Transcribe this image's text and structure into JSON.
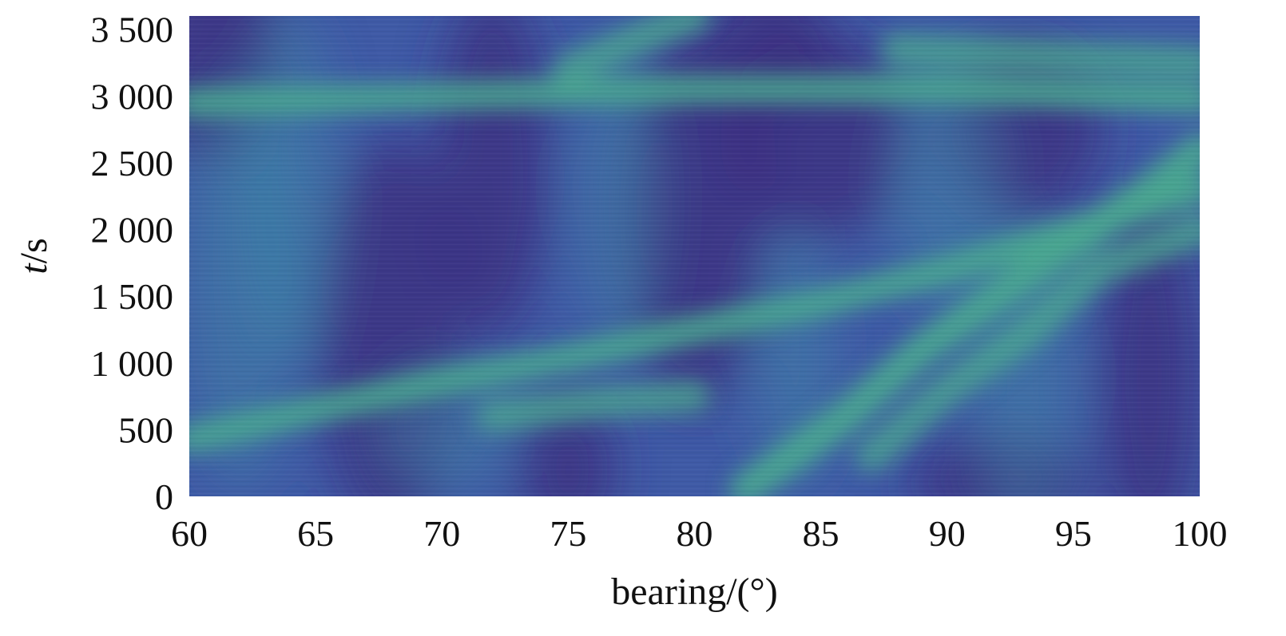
{
  "chart_data": {
    "type": "heatmap",
    "title": "",
    "xlabel": "bearing/(°)",
    "ylabel_italic": "t",
    "ylabel_rest": "/s",
    "xlim": [
      60,
      100
    ],
    "ylim": [
      0,
      3600
    ],
    "xticks": [
      {
        "value": 60,
        "label": "60"
      },
      {
        "value": 65,
        "label": "65"
      },
      {
        "value": 70,
        "label": "70"
      },
      {
        "value": 75,
        "label": "75"
      },
      {
        "value": 80,
        "label": "80"
      },
      {
        "value": 85,
        "label": "85"
      },
      {
        "value": 90,
        "label": "90"
      },
      {
        "value": 95,
        "label": "95"
      },
      {
        "value": 100,
        "label": "100"
      }
    ],
    "yticks": [
      {
        "value": 0,
        "label": "0"
      },
      {
        "value": 500,
        "label": "500"
      },
      {
        "value": 1000,
        "label": "1 000"
      },
      {
        "value": 1500,
        "label": "1 500"
      },
      {
        "value": 2000,
        "label": "2 000"
      },
      {
        "value": 2500,
        "label": "2 500"
      },
      {
        "value": 3000,
        "label": "3 000"
      },
      {
        "value": 3500,
        "label": "3 500"
      }
    ],
    "colormap": [
      "#3b2a7a",
      "#3f5aa6",
      "#3f8aa6",
      "#4aa88f"
    ],
    "grid": false,
    "tracks": [
      {
        "points": [
          [
            60,
            430
          ],
          [
            65,
            650
          ],
          [
            70,
            860
          ],
          [
            75,
            1040
          ],
          [
            80,
            1250
          ],
          [
            85,
            1450
          ],
          [
            90,
            1700
          ],
          [
            95,
            2000
          ],
          [
            100,
            2300
          ]
        ]
      },
      {
        "points": [
          [
            60,
            2950
          ],
          [
            70,
            3000
          ],
          [
            80,
            3050
          ],
          [
            90,
            3050
          ],
          [
            100,
            2980
          ]
        ]
      },
      {
        "points": [
          [
            82,
            50
          ],
          [
            86,
            600
          ],
          [
            89,
            1100
          ],
          [
            92,
            1500
          ],
          [
            95,
            1900
          ],
          [
            98,
            2300
          ],
          [
            100,
            2600
          ]
        ]
      },
      {
        "points": [
          [
            87,
            300
          ],
          [
            90,
            800
          ],
          [
            93,
            1200
          ],
          [
            96,
            1700
          ],
          [
            100,
            2000
          ]
        ]
      },
      {
        "points": [
          [
            75,
            3200
          ],
          [
            78,
            3450
          ],
          [
            80,
            3600
          ]
        ]
      },
      {
        "points": [
          [
            88,
            3350
          ],
          [
            94,
            3300
          ],
          [
            100,
            3250
          ]
        ]
      },
      {
        "points": [
          [
            72,
            600
          ],
          [
            76,
            700
          ],
          [
            80,
            750
          ]
        ]
      }
    ]
  }
}
